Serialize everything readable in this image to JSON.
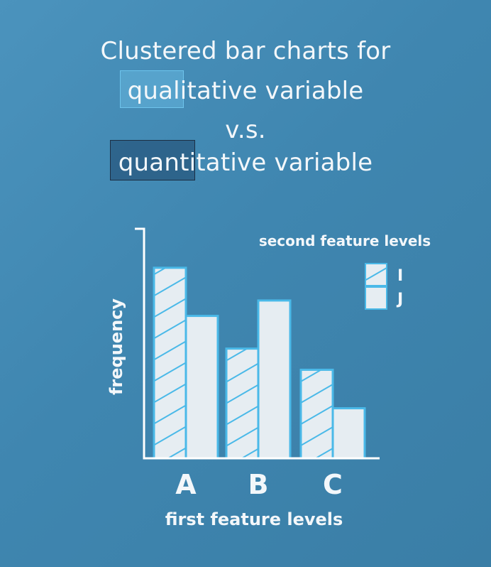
{
  "title": {
    "line1": "Clustered bar charts for",
    "line2": "qualitative variable",
    "line3": "v.s.",
    "line4": "quantitative variable"
  },
  "colors": {
    "background": "#3f86b0",
    "bar_fill": "#e6edf2",
    "bar_stroke": "#4ab9e8",
    "hatch": "#4ab9e8",
    "axis": "#ffffff",
    "text": "#f3f7fa"
  },
  "chart_data": {
    "type": "bar",
    "categories": [
      "A",
      "B",
      "C"
    ],
    "series": [
      {
        "name": "I",
        "values": [
          9.9,
          5.7,
          4.6
        ],
        "pattern": "hatched"
      },
      {
        "name": "J",
        "values": [
          7.4,
          8.2,
          2.6
        ],
        "pattern": "solid"
      }
    ],
    "xlabel": "first feature levels",
    "ylabel": "frequency",
    "legend_title": "second feature levels",
    "legend_position": "top-right",
    "ylim": [
      0,
      12
    ],
    "grid": false
  }
}
